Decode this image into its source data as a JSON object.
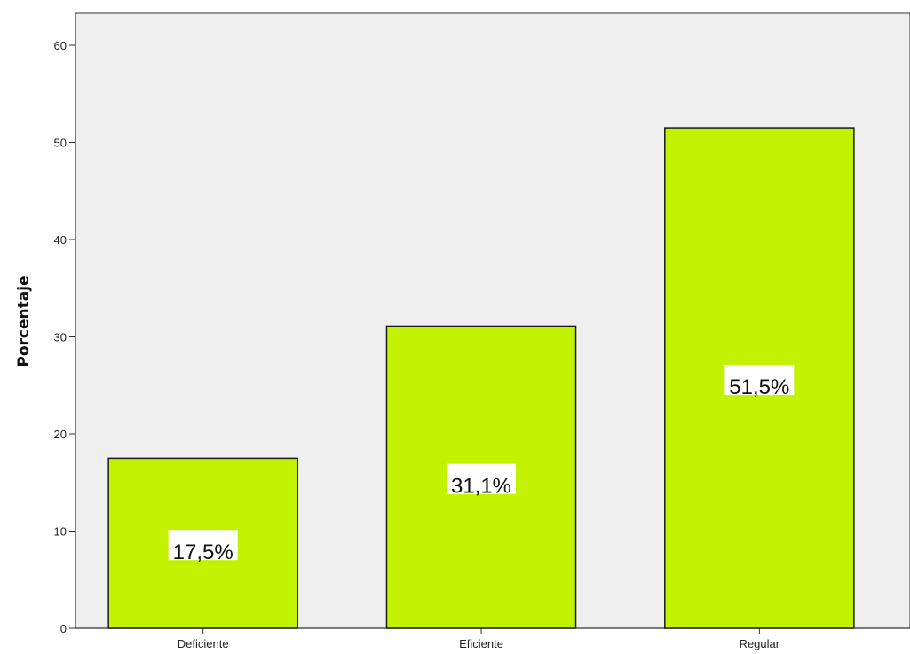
{
  "chart_data": {
    "type": "bar",
    "title": "",
    "xlabel": "",
    "ylabel": "Porcentaje",
    "ylim": [
      0,
      63
    ],
    "yticks": [
      0,
      10,
      20,
      30,
      40,
      50,
      60
    ],
    "categories": [
      "Deficiente",
      "Eficiente",
      "Regular"
    ],
    "values": [
      17.5,
      31.1,
      51.5
    ],
    "data_labels": [
      "17,5%",
      "31,1%",
      "51,5%"
    ],
    "grid": false,
    "legend": "none",
    "colors": {
      "bar_fill": "#c3f200",
      "bar_stroke": "#1a1a1a",
      "plot_background": "#efefef",
      "axis": "#333333",
      "label_box": "#ffffff"
    }
  }
}
